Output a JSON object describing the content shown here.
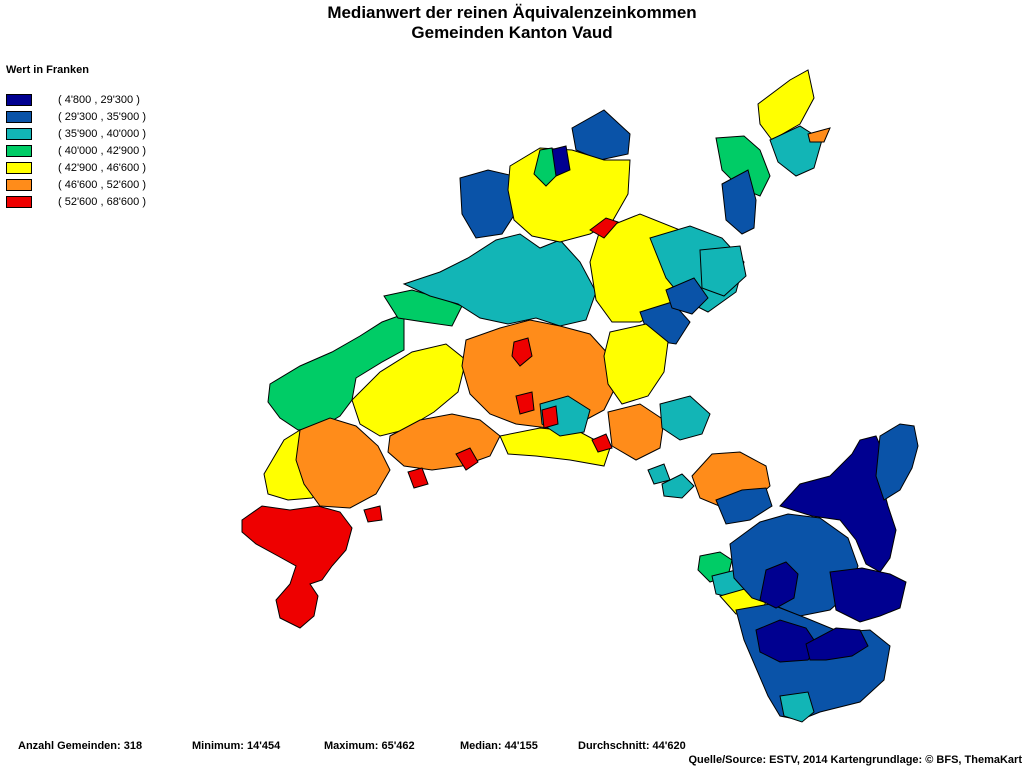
{
  "title_line1": "Medianwert der reinen Äquivalenzeinkommen",
  "title_line2": "Gemeinden Kanton Vaud",
  "legend": {
    "title": "Wert in Franken",
    "classes": [
      {
        "label": "( 4'800 , 29'300 )",
        "color": "#000090"
      },
      {
        "label": "( 29'300 , 35'900 )",
        "color": "#0a53a8"
      },
      {
        "label": "( 35'900 , 40'000 )",
        "color": "#12b5b6"
      },
      {
        "label": "( 40'000 , 42'900 )",
        "color": "#00cc66"
      },
      {
        "label": "( 42'900 , 46'600 )",
        "color": "#ffff00"
      },
      {
        "label": "( 46'600 , 52'600 )",
        "color": "#ff8c1a"
      },
      {
        "label": "( 52'600 , 68'600 )",
        "color": "#ee0000"
      }
    ]
  },
  "stats": {
    "count": "Anzahl Gemeinden: 318",
    "minimum": "Minimum: 14'454",
    "maximum": "Maximum: 65'462",
    "median": "Median: 44'155",
    "average": "Durchschnitt: 44'620"
  },
  "source": "Quelle/Source: ESTV, 2014 Kartengrundlage: © BFS, ThemaKart"
}
